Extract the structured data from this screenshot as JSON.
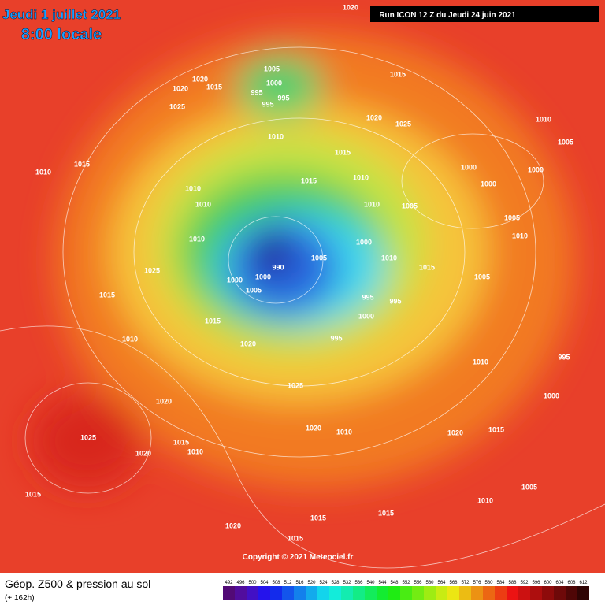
{
  "header": {
    "date": "Jeudi 1 juillet 2021",
    "time": "8:00 locale",
    "run": "Run ICON 12 Z du Jeudi 24 juin 2021"
  },
  "map": {
    "labels": [
      1020,
      1005,
      1000,
      995,
      995,
      995,
      1020,
      1015,
      1020,
      1025,
      1015,
      1020,
      1025,
      1010,
      1015,
      1010,
      1015,
      1010,
      1005,
      1000,
      1000,
      1000,
      1010,
      1005,
      1010,
      1015,
      1010,
      1010,
      1010,
      1000,
      1005,
      1010,
      1015,
      995,
      995,
      1000,
      995,
      1020,
      1025,
      1020,
      1025,
      1020,
      1015,
      1010,
      1020,
      1010,
      1020,
      1015,
      1015,
      1020,
      1015,
      1015,
      1005,
      1010,
      1000,
      995,
      1015,
      1010,
      1025,
      1015,
      1010,
      1015,
      990,
      1000,
      1005,
      1000,
      1005,
      1005,
      1010
    ]
  },
  "footer": {
    "copyright": "Copyright © 2021 Meteociel.fr",
    "title": "Géop. Z500 & pression au sol",
    "lead": "(+ 162h)",
    "scale": [
      492,
      496,
      500,
      504,
      508,
      512,
      516,
      520,
      524,
      528,
      532,
      536,
      540,
      544,
      548,
      552,
      556,
      560,
      564,
      568,
      572,
      576,
      580,
      584,
      588,
      592,
      596,
      600,
      604,
      608,
      612
    ]
  }
}
